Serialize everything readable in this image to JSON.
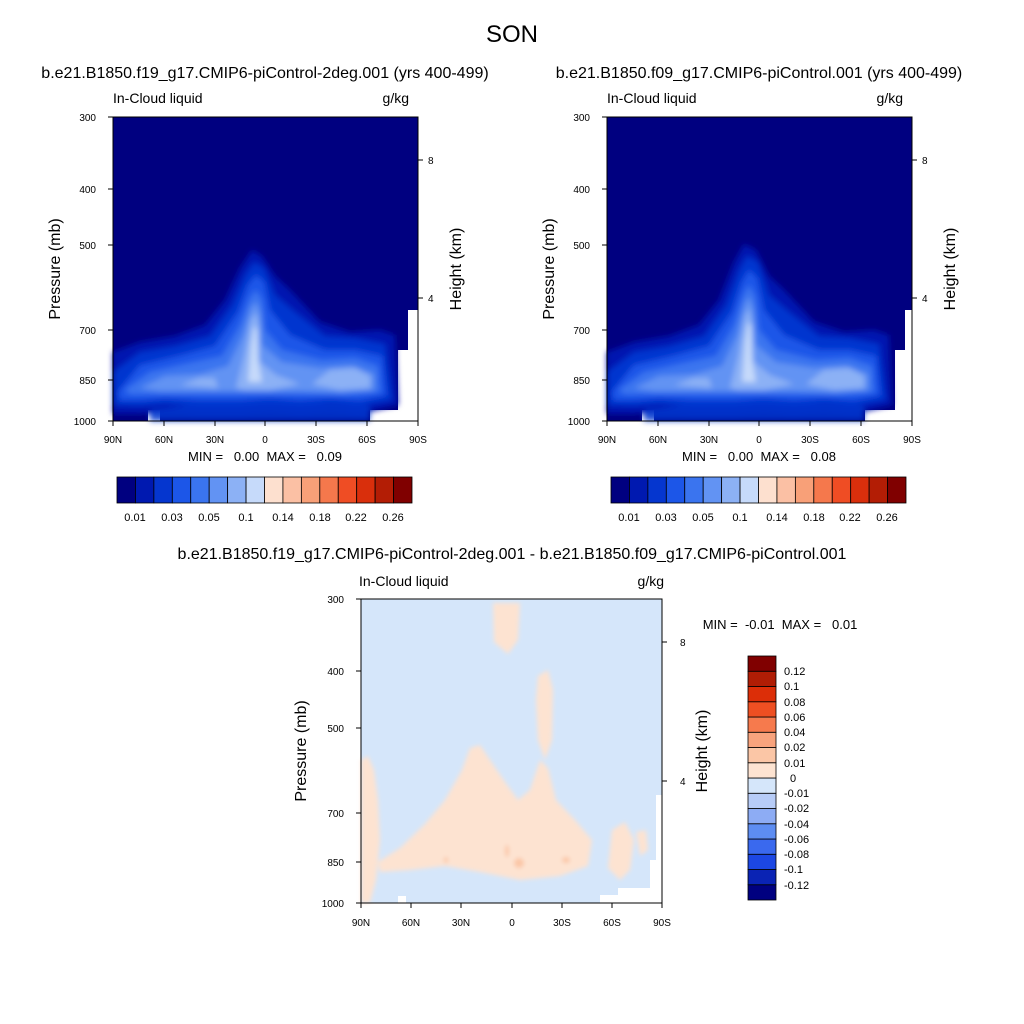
{
  "figure": {
    "title": "SON",
    "diff_title": "b.e21.B1850.f19_g17.CMIP6-piControl-2deg.001 - b.e21.B1850.f09_g17.CMIP6-piControl.001"
  },
  "colors": {
    "field_levels": [
      "#000080",
      "#0019b0",
      "#0536cf",
      "#1c56e8",
      "#3a74ef",
      "#6293f3",
      "#8cb1f5",
      "#c6dafa",
      "#fde0cf",
      "#fbc0a4",
      "#f8a078",
      "#f5784c",
      "#ef4d24",
      "#d92f0c",
      "#b31d05",
      "#800000"
    ],
    "diff_levels": [
      "#000080",
      "#0a23b4",
      "#1c47e3",
      "#3a69ee",
      "#5d8df2",
      "#8dacf4",
      "#b7ccf7",
      "#d5e6fa",
      "#fde3d1",
      "#fbc6a6",
      "#f8a37d",
      "#f67a4d",
      "#ee4f22",
      "#dc2e08",
      "#b01d05",
      "#800000"
    ]
  },
  "chart_data": [
    {
      "type": "heatmap",
      "name": "panel-left",
      "title": "b.e21.B1850.f19_g17.CMIP6-piControl-2deg.001 (yrs 400-499)",
      "left_label": "In-Cloud liquid",
      "right_label": "g/kg",
      "ylabel": "Pressure (mb)",
      "ylabel_right": "Height (km)",
      "x_ticks": [
        "90N",
        "60N",
        "30N",
        "0",
        "30S",
        "60S",
        "90S"
      ],
      "y_ticks": [
        "300",
        "400",
        "500",
        "700",
        "850",
        "1000"
      ],
      "y_ticks_right": [
        "8",
        "4"
      ],
      "xlim": [
        90,
        -90
      ],
      "ylim": [
        1000,
        300
      ],
      "min_max": "MIN =   0.00  MAX =   0.09",
      "colorbar_labels": [
        "0.01",
        "0.03",
        "0.05",
        "0.1",
        "0.14",
        "0.18",
        "0.22",
        "0.26"
      ],
      "peak_values": [
        0.09,
        0.06,
        0.05
      ]
    },
    {
      "type": "heatmap",
      "name": "panel-right",
      "title": "b.e21.B1850.f09_g17.CMIP6-piControl.001 (yrs 400-499)",
      "left_label": "In-Cloud liquid",
      "right_label": "g/kg",
      "ylabel": "Pressure (mb)",
      "ylabel_right": "Height (km)",
      "x_ticks": [
        "90N",
        "60N",
        "30N",
        "0",
        "30S",
        "60S",
        "90S"
      ],
      "y_ticks": [
        "300",
        "400",
        "500",
        "700",
        "850",
        "1000"
      ],
      "y_ticks_right": [
        "8",
        "4"
      ],
      "xlim": [
        90,
        -90
      ],
      "ylim": [
        1000,
        300
      ],
      "min_max": "MIN =   0.00  MAX =   0.08",
      "colorbar_labels": [
        "0.01",
        "0.03",
        "0.05",
        "0.1",
        "0.14",
        "0.18",
        "0.22",
        "0.26"
      ],
      "peak_values": [
        0.08,
        0.05,
        0.05
      ]
    },
    {
      "type": "heatmap",
      "name": "panel-diff",
      "left_label": "In-Cloud liquid",
      "right_label": "g/kg",
      "ylabel": "Pressure (mb)",
      "ylabel_right": "Height (km)",
      "x_ticks": [
        "90N",
        "60N",
        "30N",
        "0",
        "30S",
        "60S",
        "90S"
      ],
      "y_ticks": [
        "300",
        "400",
        "500",
        "700",
        "850",
        "1000"
      ],
      "y_ticks_right": [
        "8",
        "4"
      ],
      "xlim": [
        90,
        -90
      ],
      "ylim": [
        1000,
        300
      ],
      "min_max": "MIN =  -0.01  MAX =   0.01",
      "colorbar_labels": [
        "0.12",
        "0.1",
        "0.08",
        "0.06",
        "0.04",
        "0.02",
        "0.01",
        "0",
        "-0.01",
        "-0.02",
        "-0.04",
        "-0.06",
        "-0.08",
        "-0.1",
        "-0.12"
      ]
    }
  ]
}
